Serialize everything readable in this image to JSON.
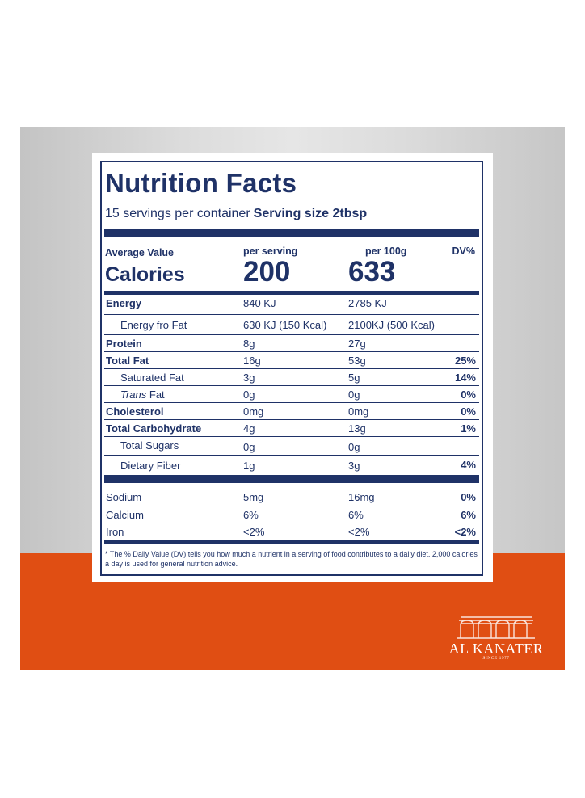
{
  "panel": {
    "title": "Nutrition Facts",
    "servings": "15 servings per container",
    "serving_size": "Serving size 2tbsp"
  },
  "header": {
    "average_value": "Average Value",
    "per_serving": "per serving",
    "per_100g": "per 100g",
    "dv": "DV%"
  },
  "calories": {
    "label": "Calories",
    "per_serving": "200",
    "per_100g": "633"
  },
  "rows": [
    {
      "name": "Energy",
      "per_serving": "840 KJ",
      "per_100g": "2785 KJ",
      "dv": ""
    },
    {
      "name": "Energy fro Fat",
      "per_serving": "630 KJ (150 Kcal)",
      "per_100g": "2100KJ (500 Kcal)",
      "dv": ""
    },
    {
      "name": "Protein",
      "per_serving": "8g",
      "per_100g": "27g",
      "dv": ""
    },
    {
      "name": "Total Fat",
      "per_serving": "16g",
      "per_100g": "53g",
      "dv": "25%"
    },
    {
      "name": "Saturated Fat",
      "per_serving": "3g",
      "per_100g": "5g",
      "dv": "14%"
    },
    {
      "name_italic": "Trans",
      "name_rest": " Fat",
      "per_serving": "0g",
      "per_100g": "0g",
      "dv": "0%"
    },
    {
      "name": "Cholesterol",
      "per_serving": "0mg",
      "per_100g": "0mg",
      "dv": "0%"
    },
    {
      "name": "Total Carbohydrate",
      "per_serving": "4g",
      "per_100g": "13g",
      "dv": "1%"
    },
    {
      "name": "Total Sugars",
      "per_serving": "0g",
      "per_100g": "0g",
      "dv": ""
    },
    {
      "name": "Dietary Fiber",
      "per_serving": "1g",
      "per_100g": "3g",
      "dv": "4%"
    }
  ],
  "minerals": [
    {
      "name": "Sodium",
      "per_serving": "5mg",
      "per_100g": "16mg",
      "dv": "0%"
    },
    {
      "name": "Calcium",
      "per_serving": "6%",
      "per_100g": "6%",
      "dv": "6%"
    },
    {
      "name": "Iron",
      "per_serving": "<2%",
      "per_100g": "<2%",
      "dv": "<2%"
    }
  ],
  "footnote": "* The % Daily Value (DV) tells you how much a nutrient in a serving of food contributes to a daily diet. 2,000 calories a day is used for general nutrition advice.",
  "brand": {
    "name": "AL KANATER",
    "tagline": "SINCE 1977"
  },
  "colors": {
    "navy": "#1f3267",
    "orange": "#e04e13"
  }
}
